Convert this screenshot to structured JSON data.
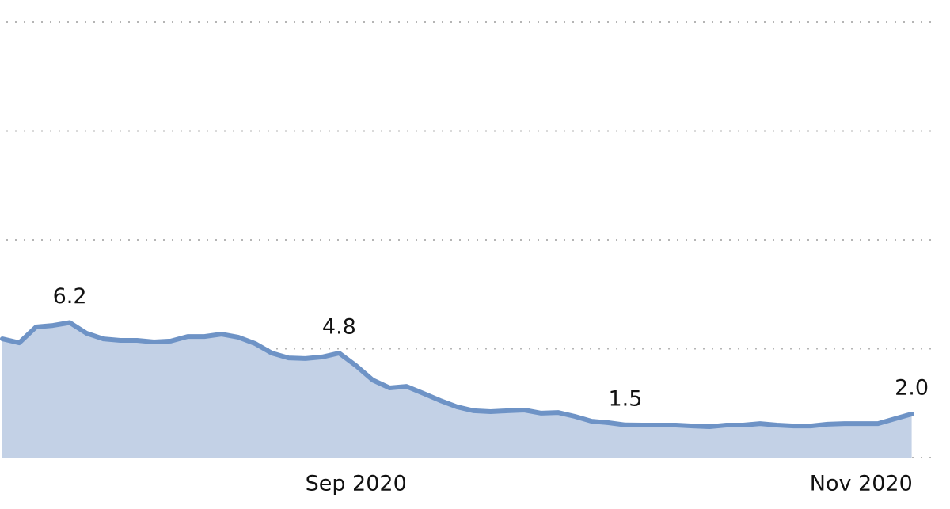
{
  "chart_data": {
    "type": "area",
    "categories": [
      null,
      null,
      null,
      null,
      null,
      null,
      null,
      null,
      null,
      null,
      null,
      null,
      null,
      null,
      null,
      null,
      null,
      null,
      null,
      null,
      null,
      "Sep 2020",
      null,
      null,
      null,
      null,
      null,
      null,
      null,
      null,
      null,
      null,
      null,
      null,
      null,
      null,
      null,
      null,
      null,
      null,
      null,
      null,
      null,
      null,
      null,
      null,
      null,
      null,
      null,
      null,
      null,
      "Nov 2020",
      null,
      null,
      null
    ],
    "series": [
      {
        "color": "#6e93c6",
        "fill": "#c3d1e6",
        "values": [
          5.45,
          5.27,
          6.0,
          6.07,
          6.2,
          5.71,
          5.45,
          5.38,
          5.38,
          5.31,
          5.35,
          5.56,
          5.56,
          5.67,
          5.53,
          5.24,
          4.8,
          4.58,
          4.55,
          4.62,
          4.8,
          4.22,
          3.56,
          3.2,
          3.27,
          2.95,
          2.62,
          2.33,
          2.15,
          2.11,
          2.15,
          2.18,
          2.04,
          2.07,
          1.89,
          1.67,
          1.6,
          1.5,
          1.49,
          1.49,
          1.49,
          1.45,
          1.42,
          1.49,
          1.49,
          1.56,
          1.49,
          1.45,
          1.45,
          1.53,
          1.56,
          1.56,
          1.56,
          1.78,
          2.0
        ],
        "value_labels": [
          null,
          null,
          null,
          null,
          "6.2",
          null,
          null,
          null,
          null,
          null,
          null,
          null,
          null,
          null,
          null,
          null,
          null,
          null,
          null,
          null,
          "4.8",
          null,
          null,
          null,
          null,
          null,
          null,
          null,
          null,
          null,
          null,
          null,
          null,
          null,
          null,
          null,
          null,
          "1.5",
          null,
          null,
          null,
          null,
          null,
          null,
          null,
          null,
          null,
          null,
          null,
          null,
          null,
          null,
          null,
          null,
          "2.0"
        ]
      }
    ],
    "ylim": [
      0,
      20
    ],
    "yticks": [
      0,
      5,
      10,
      15,
      20
    ],
    "grid": true
  }
}
